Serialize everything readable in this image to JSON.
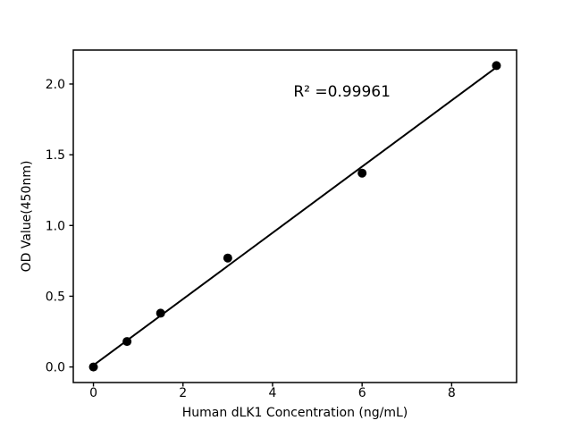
{
  "chart_data": {
    "type": "scatter",
    "title": "",
    "xlabel": "Human dLK1 Concentration (ng/mL)",
    "ylabel": "OD Value(450nm)",
    "points": [
      {
        "x": 0,
        "y": 0.0
      },
      {
        "x": 0.75,
        "y": 0.18
      },
      {
        "x": 1.5,
        "y": 0.38
      },
      {
        "x": 3,
        "y": 0.77
      },
      {
        "x": 6,
        "y": 1.37
      },
      {
        "x": 9,
        "y": 2.13
      }
    ],
    "fit_line": {
      "slope": 0.234,
      "intercept": 0.012,
      "x_start": 0,
      "x_end": 9
    },
    "annotation": {
      "text": "R² =0.99961",
      "x": 5.55,
      "y": 1.95
    },
    "x_ticks": [
      "0",
      "2",
      "4",
      "6",
      "8"
    ],
    "y_ticks": [
      "0.0",
      "0.5",
      "1.0",
      "1.5",
      "2.0"
    ],
    "xlim": [
      -0.45,
      9.45
    ],
    "ylim": [
      -0.11,
      2.24
    ],
    "grid": false,
    "legend": null,
    "marker_color": "#000000",
    "line_color": "#000000",
    "axis_color": "#000000",
    "background": "#ffffff"
  }
}
